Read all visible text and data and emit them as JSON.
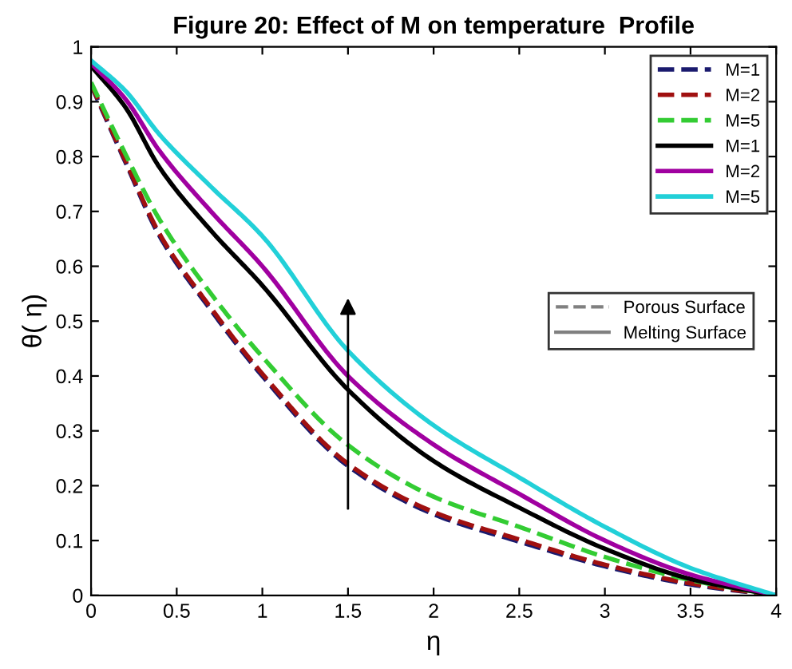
{
  "chart_data": {
    "type": "line",
    "title": "Figure 20: Effect of M on temperature  Profile",
    "xlabel": "η",
    "ylabel": "θ( η)",
    "x": [
      0,
      0.2,
      0.4,
      0.7,
      1,
      1.5,
      2,
      2.5,
      3,
      3.5,
      4
    ],
    "series": [
      {
        "name": "M=1",
        "color": "#1a1a6e",
        "line_style": "dashed",
        "values": [
          0.93,
          0.79,
          0.655,
          0.52,
          0.4,
          0.236,
          0.148,
          0.098,
          0.053,
          0.02,
          0
        ]
      },
      {
        "name": "M=2",
        "color": "#a01010",
        "line_style": "dashed",
        "values": [
          0.932,
          0.793,
          0.659,
          0.524,
          0.404,
          0.24,
          0.152,
          0.102,
          0.056,
          0.022,
          0
        ]
      },
      {
        "name": "M=5",
        "color": "#33cc33",
        "line_style": "dashed",
        "values": [
          0.935,
          0.805,
          0.685,
          0.55,
          0.435,
          0.274,
          0.18,
          0.125,
          0.07,
          0.028,
          0
        ]
      },
      {
        "name": "M=1",
        "color": "#000000",
        "line_style": "solid",
        "values": [
          0.965,
          0.89,
          0.78,
          0.665,
          0.565,
          0.375,
          0.245,
          0.16,
          0.085,
          0.03,
          0
        ]
      },
      {
        "name": "M=2",
        "color": "#a000a0",
        "line_style": "solid",
        "values": [
          0.97,
          0.905,
          0.81,
          0.7,
          0.6,
          0.4,
          0.275,
          0.185,
          0.1,
          0.038,
          0
        ]
      },
      {
        "name": "M=5",
        "color": "#22d0d8",
        "line_style": "solid",
        "values": [
          0.975,
          0.92,
          0.84,
          0.745,
          0.655,
          0.446,
          0.31,
          0.215,
          0.125,
          0.05,
          0
        ]
      }
    ],
    "xlim": [
      0,
      4
    ],
    "ylim": [
      0,
      1
    ],
    "xticks": [
      0,
      0.5,
      1,
      1.5,
      2,
      2.5,
      3,
      3.5,
      4
    ],
    "yticks": [
      0,
      0.1,
      0.2,
      0.3,
      0.4,
      0.5,
      0.6,
      0.7,
      0.8,
      0.9,
      1
    ],
    "grid": false,
    "legend": "top right",
    "marker": "none",
    "annotations": [
      "Porous Surface",
      "Melting Surface"
    ]
  }
}
